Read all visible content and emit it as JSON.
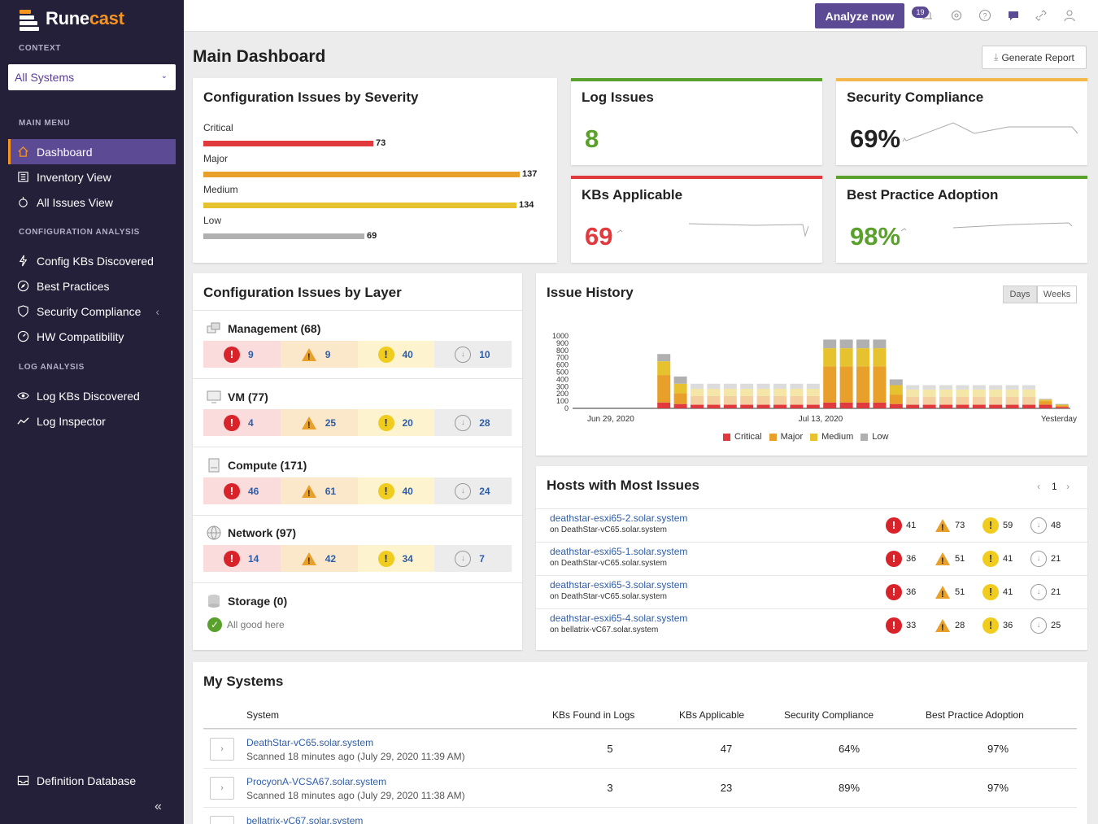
{
  "app": {
    "name_part1": "Rune",
    "name_part2": "cast"
  },
  "sidebar": {
    "context_label": "CONTEXT",
    "context_value": "All Systems",
    "main_menu_label": "MAIN MENU",
    "config_label": "CONFIGURATION ANALYSIS",
    "log_label": "LOG ANALYSIS",
    "items": [
      {
        "label": "Dashboard",
        "icon": "home-icon"
      },
      {
        "label": "Inventory View",
        "icon": "list-icon"
      },
      {
        "label": "All Issues View",
        "icon": "bug-icon"
      },
      {
        "label": "Config KBs Discovered",
        "icon": "lightning-icon"
      },
      {
        "label": "Best Practices",
        "icon": "compass-icon"
      },
      {
        "label": "Security Compliance",
        "icon": "shield-icon"
      },
      {
        "label": "HW Compatibility",
        "icon": "gauge-icon"
      },
      {
        "label": "Log KBs Discovered",
        "icon": "eye-icon"
      },
      {
        "label": "Log Inspector",
        "icon": "trend-icon"
      }
    ],
    "definition_db": "Definition Database",
    "collapse": "«"
  },
  "topbar": {
    "analyze": "Analyze now",
    "notifications": "19"
  },
  "page": {
    "title": "Main Dashboard",
    "generate_report": "Generate Report"
  },
  "severity": {
    "title": "Configuration Issues by Severity",
    "rows": [
      {
        "label": "Critical",
        "value": "73",
        "color": "#e0393e"
      },
      {
        "label": "Major",
        "value": "137",
        "color": "#e8a02b"
      },
      {
        "label": "Medium",
        "value": "134",
        "color": "#e6c32e"
      },
      {
        "label": "Low",
        "value": "69",
        "color": "#b0b0b0"
      }
    ]
  },
  "kpis": {
    "log_issues": {
      "title": "Log Issues",
      "value": "8",
      "color": "#5aa02c"
    },
    "security": {
      "title": "Security Compliance",
      "value": "69%",
      "color": "#f2b84b"
    },
    "kbs": {
      "title": "KBs Applicable",
      "value": "69",
      "color": "#e0393e"
    },
    "best_practice": {
      "title": "Best Practice Adoption",
      "value": "98%",
      "color": "#5aa02c"
    }
  },
  "layers": {
    "title": "Configuration Issues by Layer",
    "items": [
      {
        "name": "Management (68)",
        "icon": "management-icon",
        "crit": "9",
        "maj": "9",
        "med": "40",
        "low": "10"
      },
      {
        "name": "VM (77)",
        "icon": "monitor-icon",
        "crit": "4",
        "maj": "25",
        "med": "20",
        "low": "28"
      },
      {
        "name": "Compute (171)",
        "icon": "server-icon",
        "crit": "46",
        "maj": "61",
        "med": "40",
        "low": "24"
      },
      {
        "name": "Network (97)",
        "icon": "globe-icon",
        "crit": "14",
        "maj": "42",
        "med": "34",
        "low": "7"
      }
    ],
    "storage": {
      "name": "Storage (0)",
      "status": "All good here"
    }
  },
  "history": {
    "title": "Issue History",
    "toggle_days": "Days",
    "toggle_weeks": "Weeks",
    "legend": [
      "Critical",
      "Major",
      "Medium",
      "Low"
    ]
  },
  "chart_data": {
    "type": "bar",
    "y_ticks": [
      "1000",
      "900",
      "800",
      "700",
      "600",
      "500",
      "400",
      "300",
      "200",
      "100",
      "0"
    ],
    "x_labels": [
      "Jun 29, 2020",
      "Jul 13, 2020",
      "Yesterday"
    ],
    "series_colors": {
      "Critical": "#e0393e",
      "Major": "#e8a02b",
      "Medium": "#e6c32e",
      "Low": "#b0b0b0"
    },
    "ylim": [
      0,
      1000
    ],
    "bars": [
      {
        "crit": 0,
        "maj": 0,
        "med": 0,
        "low": 0
      },
      {
        "crit": 0,
        "maj": 0,
        "med": 0,
        "low": 0
      },
      {
        "crit": 0,
        "maj": 0,
        "med": 0,
        "low": 0
      },
      {
        "crit": 0,
        "maj": 0,
        "med": 0,
        "low": 0
      },
      {
        "crit": 0,
        "maj": 0,
        "med": 0,
        "low": 0
      },
      {
        "crit": 80,
        "maj": 380,
        "med": 190,
        "low": 100
      },
      {
        "crit": 60,
        "maj": 150,
        "med": 130,
        "low": 100
      },
      {
        "crit": 50,
        "maj": 120,
        "med": 100,
        "low": 70
      },
      {
        "crit": 50,
        "maj": 120,
        "med": 100,
        "low": 70
      },
      {
        "crit": 50,
        "maj": 120,
        "med": 100,
        "low": 70
      },
      {
        "crit": 50,
        "maj": 120,
        "med": 100,
        "low": 70
      },
      {
        "crit": 50,
        "maj": 120,
        "med": 100,
        "low": 70
      },
      {
        "crit": 50,
        "maj": 120,
        "med": 100,
        "low": 70
      },
      {
        "crit": 50,
        "maj": 120,
        "med": 100,
        "low": 70
      },
      {
        "crit": 50,
        "maj": 120,
        "med": 100,
        "low": 70
      },
      {
        "crit": 80,
        "maj": 500,
        "med": 250,
        "low": 120
      },
      {
        "crit": 80,
        "maj": 500,
        "med": 250,
        "low": 120
      },
      {
        "crit": 80,
        "maj": 500,
        "med": 250,
        "low": 120
      },
      {
        "crit": 80,
        "maj": 500,
        "med": 250,
        "low": 120
      },
      {
        "crit": 60,
        "maj": 130,
        "med": 130,
        "low": 80
      },
      {
        "crit": 50,
        "maj": 110,
        "med": 100,
        "low": 60
      },
      {
        "crit": 50,
        "maj": 110,
        "med": 100,
        "low": 60
      },
      {
        "crit": 50,
        "maj": 110,
        "med": 100,
        "low": 60
      },
      {
        "crit": 50,
        "maj": 110,
        "med": 100,
        "low": 60
      },
      {
        "crit": 50,
        "maj": 110,
        "med": 100,
        "low": 60
      },
      {
        "crit": 50,
        "maj": 110,
        "med": 100,
        "low": 60
      },
      {
        "crit": 50,
        "maj": 110,
        "med": 100,
        "low": 60
      },
      {
        "crit": 50,
        "maj": 110,
        "med": 100,
        "low": 60
      },
      {
        "crit": 50,
        "maj": 50,
        "med": 20,
        "low": 10
      },
      {
        "crit": 20,
        "maj": 20,
        "med": 10,
        "low": 10
      }
    ]
  },
  "hosts": {
    "title": "Hosts with Most Issues",
    "page": "1",
    "items": [
      {
        "name": "deathstar-esxi65-2.solar.system",
        "sub": "on DeathStar-vC65.solar.system",
        "crit": "41",
        "maj": "73",
        "med": "59",
        "low": "48"
      },
      {
        "name": "deathstar-esxi65-1.solar.system",
        "sub": "on DeathStar-vC65.solar.system",
        "crit": "36",
        "maj": "51",
        "med": "41",
        "low": "21"
      },
      {
        "name": "deathstar-esxi65-3.solar.system",
        "sub": "on DeathStar-vC65.solar.system",
        "crit": "36",
        "maj": "51",
        "med": "41",
        "low": "21"
      },
      {
        "name": "deathstar-esxi65-4.solar.system",
        "sub": "on bellatrix-vC67.solar.system",
        "crit": "33",
        "maj": "28",
        "med": "36",
        "low": "25"
      }
    ]
  },
  "systems": {
    "title": "My Systems",
    "headers": {
      "system": "System",
      "kbs_logs": "KBs Found in Logs",
      "kbs_app": "KBs Applicable",
      "security": "Security Compliance",
      "bp": "Best Practice Adoption"
    },
    "rows": [
      {
        "name": "DeathStar-vC65.solar.system",
        "scan": "Scanned 18 minutes ago (July 29, 2020 11:39 AM)",
        "logs": "5",
        "kbs": "47",
        "sec": "64%",
        "bp": "97%"
      },
      {
        "name": "ProcyonA-VCSA67.solar.system",
        "scan": "Scanned 18 minutes ago (July 29, 2020 11:38 AM)",
        "logs": "3",
        "kbs": "23",
        "sec": "89%",
        "bp": "97%"
      },
      {
        "name": "bellatrix-vC67.solar.system",
        "scan": "",
        "logs": "",
        "kbs": "",
        "sec": "",
        "bp": ""
      }
    ]
  }
}
